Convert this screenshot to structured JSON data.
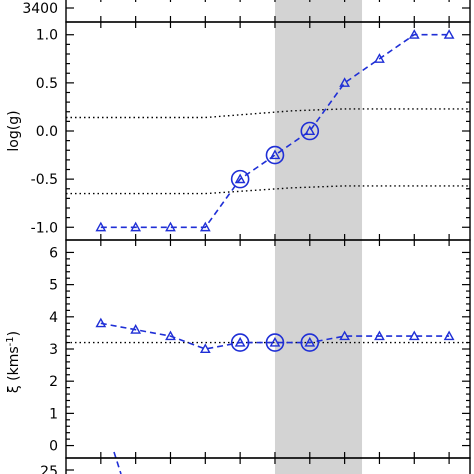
{
  "chart_data": [
    {
      "panel": "top-partial",
      "type": "line",
      "tick_labels_y": [
        "3400"
      ],
      "ylabel": ""
    },
    {
      "panel": "logg",
      "type": "line",
      "ylabel": "log(g)",
      "ylim": [
        -1.07,
        1.07
      ],
      "yticks": [
        -1.0,
        -0.5,
        0.0,
        0.5,
        1.0
      ],
      "ytick_labels": [
        "-1.0",
        "-0.5",
        "0.0",
        "0.5",
        "1.0"
      ],
      "xlim": [
        0,
        11.6
      ],
      "shaded_x": [
        6.0,
        8.5
      ],
      "series": [
        {
          "x": [
            1,
            2,
            3,
            4,
            5,
            6,
            7,
            8,
            9,
            10,
            11
          ],
          "values": [
            -1.0,
            -1.0,
            -1.0,
            -1.0,
            -0.5,
            -0.25,
            0.0,
            0.5,
            0.75,
            1.0,
            1.0
          ],
          "marker": "triangle"
        }
      ],
      "circled_points": [
        {
          "x": 5,
          "y": -0.5
        },
        {
          "x": 6,
          "y": -0.25
        },
        {
          "x": 7,
          "y": 0.0
        }
      ],
      "reference_lines": [
        {
          "x": [
            0,
            4,
            6.5,
            8,
            11.6
          ],
          "y": [
            0.14,
            0.14,
            0.21,
            0.23,
            0.23
          ]
        },
        {
          "x": [
            0,
            4,
            6.5,
            8,
            11.6
          ],
          "y": [
            -0.65,
            -0.65,
            -0.59,
            -0.57,
            -0.57
          ]
        }
      ]
    },
    {
      "panel": "xi",
      "type": "line",
      "ylabel": "ξ (kms⁻¹)",
      "ylabel_main": "ξ (kms",
      "ylabel_sup": "-1",
      "ylabel_close": ")",
      "ylim": [
        -0.2,
        6.2
      ],
      "yticks": [
        0,
        1,
        2,
        3,
        4,
        5,
        6
      ],
      "ytick_labels": [
        "0",
        "1",
        "2",
        "3",
        "4",
        "5",
        "6"
      ],
      "xlim": [
        0,
        11.6
      ],
      "shaded_x": [
        6.0,
        8.5
      ],
      "series": [
        {
          "x": [
            1,
            2,
            3,
            4,
            5,
            6,
            7,
            8,
            9,
            10,
            11
          ],
          "values": [
            3.8,
            3.6,
            3.4,
            3.0,
            3.2,
            3.2,
            3.2,
            3.4,
            3.4,
            3.4,
            3.4
          ],
          "marker": "triangle"
        }
      ],
      "circled_points": [
        {
          "x": 5,
          "y": 3.2
        },
        {
          "x": 6,
          "y": 3.2
        },
        {
          "x": 7,
          "y": 3.2
        }
      ],
      "reference_lines": [
        {
          "x": [
            0,
            11.6
          ],
          "y": [
            3.2,
            3.2
          ]
        }
      ]
    },
    {
      "panel": "bottom-partial",
      "type": "line",
      "tick_labels_y": [
        "25"
      ],
      "ylabel": ""
    }
  ]
}
